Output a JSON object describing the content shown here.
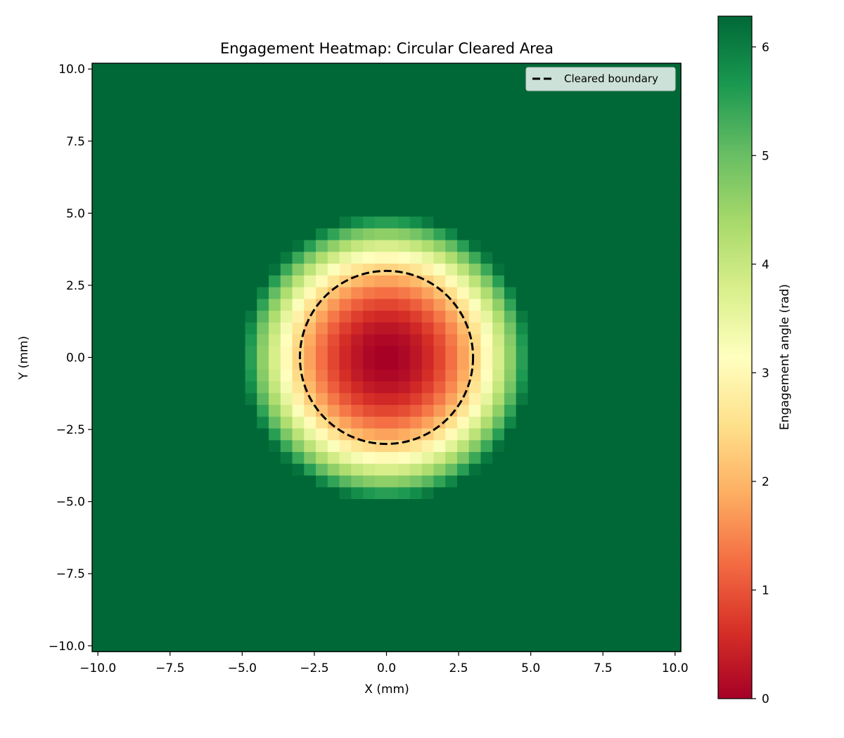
{
  "chart_data": {
    "type": "heatmap",
    "title": "Engagement Heatmap: Circular Cleared Area",
    "xlabel": "X (mm)",
    "ylabel": "Y (mm)",
    "xlim": [
      -10.2,
      10.2
    ],
    "ylim": [
      -10.2,
      10.2
    ],
    "x_ticks": [
      -10.0,
      -7.5,
      -5.0,
      -2.5,
      0.0,
      2.5,
      5.0,
      7.5,
      10.0
    ],
    "y_ticks": [
      -10.0,
      -7.5,
      -5.0,
      -2.5,
      0.0,
      2.5,
      5.0,
      7.5,
      10.0
    ],
    "x_tick_labels": [
      "−10.0",
      "−7.5",
      "−5.0",
      "−2.5",
      "0.0",
      "2.5",
      "5.0",
      "7.5",
      "10.0"
    ],
    "y_tick_labels": [
      "−10.0",
      "−7.5",
      "−5.0",
      "−2.5",
      "0.0",
      "2.5",
      "5.0",
      "7.5",
      "10.0"
    ],
    "grid": {
      "x_min": -10,
      "x_max": 10,
      "y_min": -10,
      "y_max": 10,
      "n": 50
    },
    "field": {
      "description_of_values": "engagement angle in radians, approx 2*pi*(r/5)^2 clipped to [0, 2*pi]",
      "cleared_radius_mm": 3.0,
      "value_max_rad": 6.2832,
      "outer_radius_mm": 5.0
    },
    "boundary_circle": {
      "center": [
        0,
        0
      ],
      "radius": 3.0,
      "style": "dashed",
      "color": "#000000"
    },
    "legend": {
      "position": "top-right",
      "entries": [
        "Cleared boundary"
      ]
    },
    "colorbar": {
      "label": "Engagement angle (rad)",
      "range": [
        0,
        6.2832
      ],
      "ticks": [
        0,
        1,
        2,
        3,
        4,
        5,
        6
      ],
      "tick_labels": [
        "0",
        "1",
        "2",
        "3",
        "4",
        "5",
        "6"
      ],
      "colormap": "RdYlGn"
    },
    "colors": {
      "stops": [
        "#a50026",
        "#d73027",
        "#f46d43",
        "#fdae61",
        "#fee08b",
        "#ffffbf",
        "#d9ef8b",
        "#a6d96a",
        "#66bd63",
        "#1a9850",
        "#006837"
      ]
    }
  }
}
